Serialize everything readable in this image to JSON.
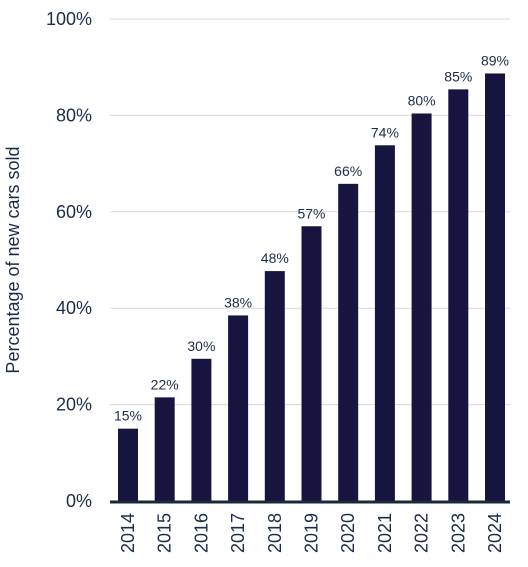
{
  "chart_data": {
    "type": "bar",
    "title": "",
    "xlabel": "",
    "ylabel": "Percentage of new cars sold",
    "categories": [
      "2014",
      "2015",
      "2016",
      "2017",
      "2018",
      "2019",
      "2020",
      "2021",
      "2022",
      "2023",
      "2024"
    ],
    "values": [
      15,
      21.5,
      29.5,
      38.5,
      47.7,
      57,
      65.8,
      73.8,
      80.4,
      85.4,
      88.7
    ],
    "data_labels": [
      "15%",
      "22%",
      "30%",
      "38%",
      "48%",
      "57%",
      "66%",
      "74%",
      "80%",
      "85%",
      "89%"
    ],
    "ylim": [
      0,
      100
    ],
    "y_ticks": [
      0,
      20,
      40,
      60,
      80,
      100
    ],
    "y_tick_labels": [
      "0%",
      "20%",
      "40%",
      "60%",
      "80%",
      "100%"
    ],
    "grid": true,
    "legend": "none",
    "colors": {
      "bar": "#17153f",
      "text": "#1d2b4a",
      "grid": "#d9d9d9",
      "baseline": "#1b2a3a"
    }
  }
}
